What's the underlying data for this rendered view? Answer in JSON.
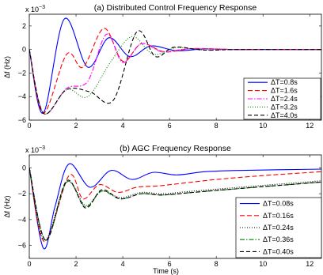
{
  "chart_data": [
    {
      "type": "line",
      "title": "(a) Distributed Control Frequency Response",
      "xlabel": "",
      "ylabel": "Δf (Hz)",
      "y_multiplier": "x 10",
      "y_exponent": "−3",
      "xlim": [
        0,
        12.5
      ],
      "ylim": [
        -6,
        3
      ],
      "xticks": [
        "0",
        "2",
        "4",
        "6",
        "8",
        "10",
        "12"
      ],
      "yticks": [
        "2",
        "0",
        "−2",
        "−4",
        "−6"
      ],
      "grid": false,
      "legend_position": "right",
      "dc_gain": [
        1,
        1,
        1,
        1,
        1
      ],
      "series": [
        {
          "name": "ΔT=0.8s",
          "color": "#0000ff",
          "dash": "",
          "x": [
            0,
            0.6,
            1.5,
            2.5,
            3.4,
            4.3,
            5.2,
            6.3,
            7.5,
            9,
            12.5
          ],
          "y": [
            0,
            -5.4,
            2.6,
            -1.5,
            1.0,
            -0.6,
            0.3,
            -0.1,
            0.05,
            0,
            0
          ]
        },
        {
          "name": "ΔT=1.6s",
          "color": "#ff0000",
          "dash": "6,3",
          "x": [
            0,
            0.6,
            1.6,
            2.3,
            3.2,
            4.0,
            4.8,
            5.8,
            7.0,
            9,
            12.5
          ],
          "y": [
            0,
            -5.4,
            -0.4,
            -1.5,
            1.8,
            -1.0,
            0.5,
            -0.2,
            0.08,
            0,
            0
          ]
        },
        {
          "name": "ΔT=2.4s",
          "color": "#ff00ff",
          "dash": "6,2,1.5,2",
          "x": [
            0,
            0.6,
            1.6,
            2.5,
            3.3,
            4.0,
            4.8,
            5.7,
            6.8,
            9,
            12.5
          ],
          "y": [
            0,
            -5.4,
            -3.3,
            -2.7,
            1.3,
            -1.1,
            0.5,
            -0.2,
            0.05,
            0,
            0
          ]
        },
        {
          "name": "ΔT=3.2s",
          "color": "#008000",
          "dash": "1,2",
          "x": [
            0,
            0.6,
            1.6,
            2.5,
            3.5,
            4.4,
            5.3,
            6.3,
            7.5,
            9,
            12.5
          ],
          "y": [
            0,
            -5.4,
            -3.4,
            -4.0,
            -1.0,
            1.1,
            -0.4,
            0.15,
            -0.05,
            0,
            0
          ]
        },
        {
          "name": "ΔT=4.0s",
          "color": "#000000",
          "dash": "5,3",
          "x": [
            0,
            0.6,
            1.6,
            2.6,
            3.6,
            4.6,
            5.4,
            6.2,
            7.5,
            9,
            12.5
          ],
          "y": [
            0,
            -5.4,
            -3.4,
            -3.6,
            -4.3,
            1.5,
            -0.6,
            0.2,
            -0.05,
            0,
            0
          ]
        }
      ]
    },
    {
      "type": "line",
      "title": "(b) AGC Frequency Response",
      "xlabel": "Time (s)",
      "ylabel": "Δf (Hz)",
      "y_multiplier": "x 10",
      "y_exponent": "−3",
      "xlim": [
        0,
        12.5
      ],
      "ylim": [
        -7,
        1
      ],
      "xticks": [
        "0",
        "2",
        "4",
        "6",
        "8",
        "10",
        "12"
      ],
      "yticks": [
        "0",
        "−2",
        "−4",
        "−6"
      ],
      "grid": false,
      "legend_position": "right",
      "series": [
        {
          "name": "ΔT=0.08s",
          "color": "#0000ff",
          "dash": "",
          "x": [
            0,
            0.6,
            1.1,
            1.7,
            2.6,
            3.5,
            4.4,
            5.3,
            6.3,
            7.5,
            9,
            12.5
          ],
          "y": [
            0,
            -6.2,
            -3.0,
            0.3,
            -1.5,
            -0.2,
            -0.9,
            -0.35,
            -0.55,
            -0.3,
            -0.2,
            -0.1
          ]
        },
        {
          "name": "ΔT=0.16s",
          "color": "#ff0000",
          "dash": "6,3",
          "x": [
            0,
            0.65,
            1.7,
            2.3,
            3.0,
            3.8,
            4.6,
            5.5,
            6.5,
            8,
            10,
            12.5
          ],
          "y": [
            0,
            -5.7,
            -0.6,
            -2.4,
            -1.3,
            -1.9,
            -1.5,
            -1.4,
            -1.2,
            -0.9,
            -0.6,
            -0.3
          ]
        },
        {
          "name": "ΔT=0.24s",
          "color": "#000000",
          "dash": "1,2",
          "x": [
            0,
            0.65,
            1.6,
            2.4,
            3.1,
            3.9,
            4.8,
            5.7,
            7,
            9,
            12.5
          ],
          "y": [
            0,
            -5.6,
            -1.1,
            -2.9,
            -1.8,
            -2.3,
            -1.9,
            -2.0,
            -1.8,
            -1.5,
            -1.0
          ]
        },
        {
          "name": "ΔT=0.36s",
          "color": "#008000",
          "dash": "6,2,1.5,2",
          "x": [
            0,
            0.7,
            1.6,
            2.4,
            3.1,
            3.9,
            4.8,
            5.7,
            7,
            9,
            12.5
          ],
          "y": [
            0,
            -5.6,
            -1.1,
            -3.0,
            -1.8,
            -2.4,
            -2.0,
            -2.1,
            -1.9,
            -1.6,
            -1.1
          ]
        },
        {
          "name": "ΔT=0.40s",
          "color": "#000000",
          "dash": "5,3",
          "x": [
            0,
            0.7,
            1.6,
            2.4,
            3.1,
            3.9,
            4.8,
            5.7,
            7,
            9,
            12.5
          ],
          "y": [
            0,
            -5.6,
            -1.0,
            -3.1,
            -1.7,
            -2.4,
            -2.0,
            -2.1,
            -1.9,
            -1.6,
            -1.1
          ]
        }
      ]
    }
  ]
}
